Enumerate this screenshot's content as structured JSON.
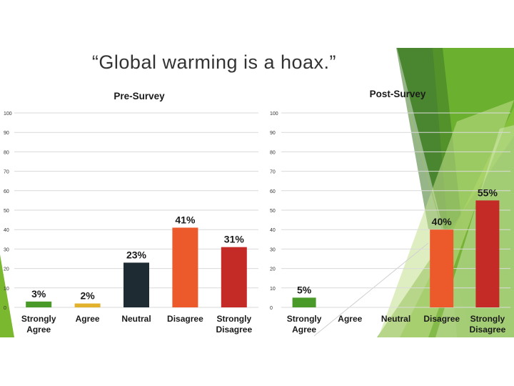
{
  "slide": {
    "title": "“Global warming is a hoax.”"
  },
  "theme_colors": {
    "green_dark": "#4a8c2c",
    "green_mid": "#6cb52e",
    "green_light": "#a6d066",
    "green_pale": "#d6e9b4"
  },
  "chart_data": [
    {
      "type": "bar",
      "title": "Pre-Survey",
      "categories": [
        "Strongly Agree",
        "Agree",
        "Neutral",
        "Disagree",
        "Strongly Disagree"
      ],
      "category_lines": [
        [
          "Strongly",
          "Agree"
        ],
        [
          "Agree"
        ],
        [
          "Neutral"
        ],
        [
          "Disagree"
        ],
        [
          "Strongly",
          "Disagree"
        ]
      ],
      "values": [
        3,
        2,
        23,
        41,
        31
      ],
      "data_labels": [
        "3%",
        "2%",
        "23%",
        "41%",
        "31%"
      ],
      "colors": [
        "#4a9a2a",
        "#e3b22c",
        "#1f2b33",
        "#ec5a2c",
        "#c42a26"
      ],
      "ylim": [
        0,
        100
      ],
      "yticks": [
        "0",
        "10",
        "20",
        "30",
        "40",
        "50",
        "60",
        "70",
        "80",
        "90",
        "100"
      ],
      "grid": true,
      "xlabel": "",
      "ylabel": ""
    },
    {
      "type": "bar",
      "title": "Post-Survey",
      "categories": [
        "Strongly Agree",
        "Agree",
        "Neutral",
        "Disagree",
        "Strongly Disagree"
      ],
      "category_lines": [
        [
          "Strongly",
          "Agree"
        ],
        [
          "Agree"
        ],
        [
          "Neutral"
        ],
        [
          "Disagree"
        ],
        [
          "Strongly",
          "Disagree"
        ]
      ],
      "values": [
        5,
        0,
        0,
        40,
        55
      ],
      "data_labels": [
        "5%",
        "",
        "",
        "40%",
        "55%"
      ],
      "colors": [
        "#4a9a2a",
        "#e3b22c",
        "#1f2b33",
        "#ec5a2c",
        "#c42a26"
      ],
      "ylim": [
        0,
        100
      ],
      "yticks": [
        "0",
        "10",
        "20",
        "30",
        "40",
        "50",
        "60",
        "70",
        "80",
        "90",
        "100"
      ],
      "grid": true,
      "xlabel": "",
      "ylabel": ""
    }
  ]
}
